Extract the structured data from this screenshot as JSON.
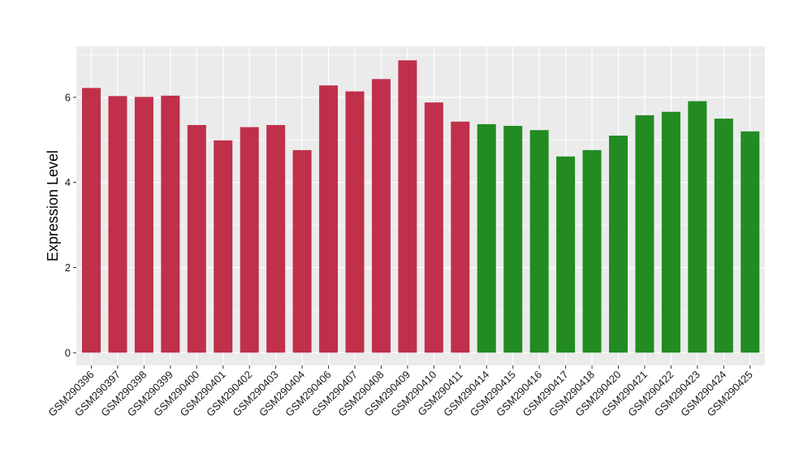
{
  "chart_data": {
    "type": "bar",
    "title": "",
    "xlabel": "",
    "ylabel": "Expression Level",
    "ylim": [
      -0.3,
      7.2
    ],
    "yticks": [
      0,
      2,
      4,
      6
    ],
    "grid": true,
    "legend": "none",
    "colors": {
      "panel_background": "#ebebeb",
      "grid_line": "#ffffff",
      "group_1": "#c0304a",
      "group_2": "#228b22"
    },
    "categories": [
      "GSM290396",
      "GSM290397",
      "GSM290398",
      "GSM290399",
      "GSM290400",
      "GSM290401",
      "GSM290402",
      "GSM290403",
      "GSM290404",
      "GSM290406",
      "GSM290407",
      "GSM290408",
      "GSM290409",
      "GSM290410",
      "GSM290411",
      "GSM290414",
      "GSM290415",
      "GSM290416",
      "GSM290417",
      "GSM290418",
      "GSM290420",
      "GSM290421",
      "GSM290422",
      "GSM290423",
      "GSM290424",
      "GSM290425"
    ],
    "values": [
      6.22,
      6.03,
      6.01,
      6.04,
      5.35,
      4.99,
      5.3,
      5.35,
      4.76,
      6.28,
      6.14,
      6.43,
      6.87,
      5.88,
      5.43,
      5.37,
      5.33,
      5.23,
      4.61,
      4.76,
      5.1,
      5.58,
      5.66,
      5.91,
      5.5,
      5.2
    ],
    "bar_groups": [
      "group_1",
      "group_1",
      "group_1",
      "group_1",
      "group_1",
      "group_1",
      "group_1",
      "group_1",
      "group_1",
      "group_1",
      "group_1",
      "group_1",
      "group_1",
      "group_1",
      "group_1",
      "group_2",
      "group_2",
      "group_2",
      "group_2",
      "group_2",
      "group_2",
      "group_2",
      "group_2",
      "group_2",
      "group_2",
      "group_2"
    ]
  }
}
